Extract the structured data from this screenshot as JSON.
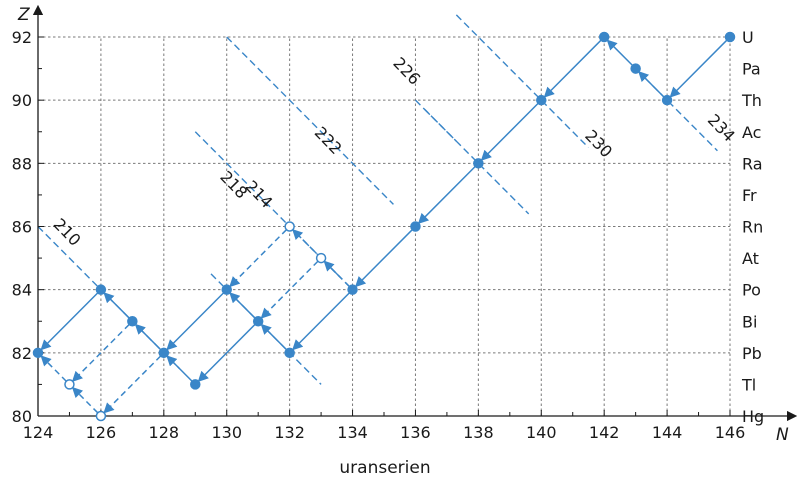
{
  "chart_data": {
    "type": "scatter",
    "title": "",
    "caption": "uranserien",
    "xlabel": "N",
    "ylabel": "Z",
    "xlim": [
      124,
      146
    ],
    "ylim": [
      80,
      92
    ],
    "x_ticks": [
      124,
      126,
      128,
      130,
      132,
      134,
      136,
      138,
      140,
      142,
      144,
      146
    ],
    "y_ticks": [
      80,
      82,
      84,
      86,
      88,
      90,
      92
    ],
    "elements": [
      {
        "z": 92,
        "symbol": "U"
      },
      {
        "z": 91,
        "symbol": "Pa"
      },
      {
        "z": 90,
        "symbol": "Th"
      },
      {
        "z": 89,
        "symbol": "Ac"
      },
      {
        "z": 88,
        "symbol": "Ra"
      },
      {
        "z": 87,
        "symbol": "Fr"
      },
      {
        "z": 86,
        "symbol": "Rn"
      },
      {
        "z": 85,
        "symbol": "At"
      },
      {
        "z": 84,
        "symbol": "Po"
      },
      {
        "z": 83,
        "symbol": "Bi"
      },
      {
        "z": 82,
        "symbol": "Pb"
      },
      {
        "z": 81,
        "symbol": "Tl"
      },
      {
        "z": 80,
        "symbol": "Hg"
      }
    ],
    "isobars": [
      {
        "a": "210",
        "n1": 124,
        "n2": 128.5,
        "label_n": 124.8,
        "label_z": 85.7
      },
      {
        "a": "214",
        "n1": 129,
        "n2": 129,
        "label_n": 130.9,
        "label_z": 86.9
      },
      {
        "a": "218",
        "n1": 129,
        "n2": 133.6,
        "label_n": 130.1,
        "label_z": 87.2
      },
      {
        "a": "222",
        "n1": 130,
        "n2": 135.3,
        "label_n": 133.1,
        "label_z": 88.6
      },
      {
        "a": "226",
        "n1": 136,
        "n2": 137.3,
        "label_n": 135.6,
        "label_z": 90.8
      },
      {
        "a": "230",
        "n1": 137.3,
        "n2": 141.5,
        "label_n": 141.7,
        "label_z": 88.5
      },
      {
        "a": "234",
        "n1": 143.3,
        "n2": 145.6,
        "label_n": 145.6,
        "label_z": 89.0
      }
    ],
    "nuclides": [
      {
        "n": 146,
        "z": 92,
        "filled": true
      },
      {
        "n": 144,
        "z": 90,
        "filled": true
      },
      {
        "n": 143,
        "z": 91,
        "filled": true
      },
      {
        "n": 142,
        "z": 92,
        "filled": true
      },
      {
        "n": 140,
        "z": 90,
        "filled": true
      },
      {
        "n": 138,
        "z": 88,
        "filled": true
      },
      {
        "n": 136,
        "z": 86,
        "filled": true
      },
      {
        "n": 134,
        "z": 84,
        "filled": true
      },
      {
        "n": 132,
        "z": 82,
        "filled": true
      },
      {
        "n": 131,
        "z": 83,
        "filled": true
      },
      {
        "n": 130,
        "z": 84,
        "filled": true
      },
      {
        "n": 129,
        "z": 81,
        "filled": true
      },
      {
        "n": 128,
        "z": 82,
        "filled": true
      },
      {
        "n": 127,
        "z": 83,
        "filled": true
      },
      {
        "n": 126,
        "z": 84,
        "filled": true
      },
      {
        "n": 124,
        "z": 82,
        "filled": true
      },
      {
        "n": 132,
        "z": 86,
        "filled": false
      },
      {
        "n": 133,
        "z": 85,
        "filled": false
      },
      {
        "n": 125,
        "z": 81,
        "filled": false
      },
      {
        "n": 126,
        "z": 80,
        "filled": false
      }
    ],
    "transitions": [
      {
        "from": [
          146,
          92
        ],
        "to": [
          144,
          90
        ],
        "decay": "alpha",
        "style": "solid"
      },
      {
        "from": [
          144,
          90
        ],
        "to": [
          143,
          91
        ],
        "decay": "beta",
        "style": "solid"
      },
      {
        "from": [
          143,
          91
        ],
        "to": [
          142,
          92
        ],
        "decay": "beta",
        "style": "solid"
      },
      {
        "from": [
          142,
          92
        ],
        "to": [
          140,
          90
        ],
        "decay": "alpha",
        "style": "solid"
      },
      {
        "from": [
          140,
          90
        ],
        "to": [
          138,
          88
        ],
        "decay": "alpha",
        "style": "solid"
      },
      {
        "from": [
          138,
          88
        ],
        "to": [
          136,
          86
        ],
        "decay": "alpha",
        "style": "solid"
      },
      {
        "from": [
          136,
          86
        ],
        "to": [
          134,
          84
        ],
        "decay": "alpha",
        "style": "solid"
      },
      {
        "from": [
          134,
          84
        ],
        "to": [
          132,
          82
        ],
        "decay": "alpha",
        "style": "solid"
      },
      {
        "from": [
          132,
          82
        ],
        "to": [
          131,
          83
        ],
        "decay": "beta",
        "style": "solid"
      },
      {
        "from": [
          131,
          83
        ],
        "to": [
          130,
          84
        ],
        "decay": "beta",
        "style": "solid"
      },
      {
        "from": [
          131,
          83
        ],
        "to": [
          129,
          81
        ],
        "decay": "alpha",
        "style": "solid"
      },
      {
        "from": [
          129,
          81
        ],
        "to": [
          128,
          82
        ],
        "decay": "beta",
        "style": "solid"
      },
      {
        "from": [
          130,
          84
        ],
        "to": [
          128,
          82
        ],
        "decay": "alpha",
        "style": "solid"
      },
      {
        "from": [
          128,
          82
        ],
        "to": [
          127,
          83
        ],
        "decay": "beta",
        "style": "solid"
      },
      {
        "from": [
          127,
          83
        ],
        "to": [
          126,
          84
        ],
        "decay": "beta",
        "style": "solid"
      },
      {
        "from": [
          126,
          84
        ],
        "to": [
          124,
          82
        ],
        "decay": "alpha",
        "style": "solid"
      },
      {
        "from": [
          134,
          84
        ],
        "to": [
          133,
          85
        ],
        "decay": "beta",
        "style": "dashed"
      },
      {
        "from": [
          133,
          85
        ],
        "to": [
          131,
          83
        ],
        "decay": "alpha",
        "style": "dashed"
      },
      {
        "from": [
          134,
          84
        ],
        "to": [
          132,
          86
        ],
        "decay": "beta",
        "style": "dashed"
      },
      {
        "from": [
          132,
          86
        ],
        "to": [
          130,
          84
        ],
        "decay": "alpha",
        "style": "dashed"
      },
      {
        "from": [
          128,
          82
        ],
        "to": [
          126,
          80
        ],
        "decay": "alpha",
        "style": "dashed"
      },
      {
        "from": [
          126,
          80
        ],
        "to": [
          125,
          81
        ],
        "decay": "beta",
        "style": "dashed"
      },
      {
        "from": [
          127,
          83
        ],
        "to": [
          125,
          81
        ],
        "decay": "alpha",
        "style": "dashed"
      },
      {
        "from": [
          125,
          81
        ],
        "to": [
          124,
          82
        ],
        "decay": "beta",
        "style": "dashed"
      }
    ],
    "colors": {
      "series": "#3a86c8",
      "grid": "#7a7a7a",
      "axis": "#1a1a1a"
    }
  }
}
